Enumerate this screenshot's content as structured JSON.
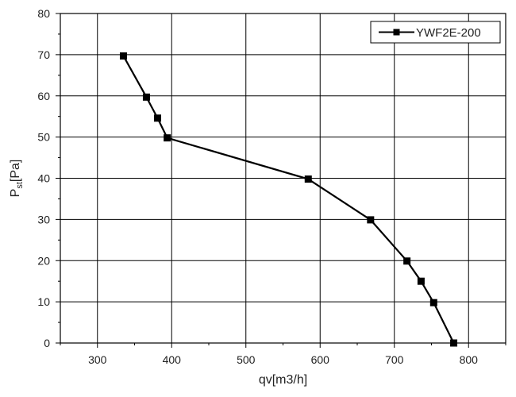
{
  "chart_data": {
    "type": "line",
    "xlabel": "qv[m3/h]",
    "ylabel_main": "P",
    "ylabel_sub": "st",
    "ylabel_unit": "[Pa]",
    "xlim": [
      250,
      850
    ],
    "ylim": [
      0,
      80
    ],
    "xticks": [
      300,
      400,
      500,
      600,
      700,
      800
    ],
    "yticks": [
      0,
      10,
      20,
      30,
      40,
      50,
      60,
      70,
      80
    ],
    "grid": true,
    "legend_position": "top-right",
    "series": [
      {
        "name": "YWF2E-200",
        "marker": "square",
        "color": "#000000",
        "x": [
          335,
          366,
          381,
          394,
          584,
          668,
          717,
          736,
          753,
          780
        ],
        "y": [
          69.7,
          59.7,
          54.6,
          49.8,
          39.8,
          29.9,
          19.9,
          15.0,
          9.8,
          0
        ]
      }
    ]
  }
}
